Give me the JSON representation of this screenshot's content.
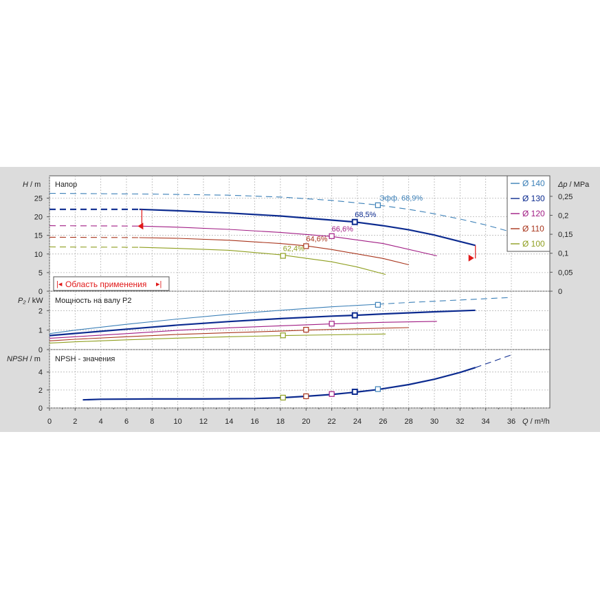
{
  "chart_data": {
    "type": "line",
    "x_axis": {
      "label": "Q / m³/h",
      "label_var": "Q",
      "label_unit": " / m³/h",
      "range": [
        0,
        39
      ],
      "ticks": [
        0,
        2,
        4,
        6,
        8,
        10,
        12,
        14,
        16,
        18,
        20,
        22,
        24,
        26,
        28,
        30,
        32,
        34,
        36
      ]
    },
    "colors": {
      "d140": "#3a7fb7",
      "d130": "#0b2a8f",
      "d120": "#a01b83",
      "d110": "#a8331a",
      "d100": "#8e9e1e",
      "limits": "#e01818",
      "grid": "#b4b4b4",
      "panel": "#ffffff",
      "frame": "#dcdcdc"
    },
    "legend": {
      "position": "right",
      "entries": [
        {
          "key": "d140",
          "label": "Ø 140"
        },
        {
          "key": "d130",
          "label": "Ø 130"
        },
        {
          "key": "d120",
          "label": "Ø 120"
        },
        {
          "key": "d110",
          "label": "Ø 110"
        },
        {
          "key": "d100",
          "label": "Ø 100"
        }
      ]
    },
    "head_panel": {
      "title": "Напор",
      "ylabel": "H / m",
      "ylabel_var": "H",
      "ylabel_unit": " / m",
      "ylim": [
        0,
        31
      ],
      "yticks": [
        0,
        5,
        10,
        15,
        20,
        25
      ],
      "right_axis": {
        "label": "Δp / MPa",
        "label_var": "Δp",
        "label_unit": " / MPa",
        "ticks": [
          0,
          0.05,
          0.1,
          0.15,
          0.2,
          0.25
        ],
        "tick_labels": [
          "0",
          "0,05",
          "0,1",
          "0,15",
          "0,2",
          "0,25"
        ]
      },
      "series": [
        {
          "key": "d140",
          "dashed_only": true,
          "points": [
            [
              0,
              26.3
            ],
            [
              8,
              26.1
            ],
            [
              14,
              25.8
            ],
            [
              18,
              25.3
            ],
            [
              22,
              24.4
            ],
            [
              25.5,
              23.2
            ],
            [
              28,
              22.0
            ],
            [
              30,
              20.8
            ],
            [
              32,
              19.4
            ],
            [
              34,
              17.8
            ],
            [
              36,
              15.9
            ]
          ],
          "bep": [
            25.6,
            23.1
          ],
          "bep_label": "Эфф.  68,9%"
        },
        {
          "key": "d130",
          "solid_from": 7,
          "solid_to": 33.2,
          "bold": true,
          "points": [
            [
              0,
              22.0
            ],
            [
              7,
              22.0
            ],
            [
              10,
              21.6
            ],
            [
              14,
              21.0
            ],
            [
              18,
              20.2
            ],
            [
              22,
              19.1
            ],
            [
              23.8,
              18.6
            ],
            [
              26,
              17.6
            ],
            [
              28,
              16.5
            ],
            [
              30,
              15.1
            ],
            [
              33.2,
              12.3
            ]
          ],
          "bep": [
            23.8,
            18.6
          ],
          "bep_label": "68,5%"
        },
        {
          "key": "d120",
          "solid_from": 7,
          "solid_to": 30.2,
          "points": [
            [
              0,
              17.6
            ],
            [
              7,
              17.5
            ],
            [
              10,
              17.2
            ],
            [
              14,
              16.6
            ],
            [
              18,
              15.8
            ],
            [
              22,
              14.7
            ],
            [
              26,
              12.8
            ],
            [
              30.2,
              9.5
            ]
          ],
          "bep": [
            22,
            14.8
          ],
          "bep_label": "66,6%"
        },
        {
          "key": "d110",
          "solid_from": 7,
          "solid_to": 28,
          "points": [
            [
              0,
              14.5
            ],
            [
              7,
              14.4
            ],
            [
              10,
              14.2
            ],
            [
              14,
              13.7
            ],
            [
              18,
              12.8
            ],
            [
              20,
              12.2
            ],
            [
              22,
              11.2
            ],
            [
              26,
              8.8
            ],
            [
              28,
              7.1
            ]
          ],
          "bep": [
            20,
            12.1
          ],
          "bep_label": "64,6%"
        },
        {
          "key": "d100",
          "solid_from": 7,
          "solid_to": 26.2,
          "points": [
            [
              0,
              11.9
            ],
            [
              7,
              11.8
            ],
            [
              10,
              11.5
            ],
            [
              14,
              11.0
            ],
            [
              18,
              9.8
            ],
            [
              22,
              7.9
            ],
            [
              24,
              6.5
            ],
            [
              26.2,
              4.5
            ]
          ],
          "bep": [
            18.2,
            9.5
          ],
          "bep_label": "62,4%"
        }
      ],
      "range_label": "Область применения",
      "range_min_q": 7.2,
      "range_max_q": 33.2
    },
    "power_panel": {
      "title": "Мощность на валу P2",
      "ylabel": "P₂ / kW",
      "ylabel_var": "P₂",
      "ylabel_unit": " / kW",
      "ylim": [
        0,
        3
      ],
      "yticks": [
        0,
        1,
        2
      ],
      "series": [
        {
          "key": "d140",
          "solid_to": 25.6,
          "points": [
            [
              0,
              0.82
            ],
            [
              2,
              1.0
            ],
            [
              6,
              1.3
            ],
            [
              10,
              1.57
            ],
            [
              14,
              1.81
            ],
            [
              18,
              2.02
            ],
            [
              22,
              2.2
            ],
            [
              25.6,
              2.33
            ],
            [
              28,
              2.42
            ],
            [
              32,
              2.55
            ],
            [
              36,
              2.68
            ]
          ],
          "marker": [
            25.6,
            2.3
          ]
        },
        {
          "key": "d130",
          "bold": true,
          "solid_to": 33.2,
          "points": [
            [
              0,
              0.72
            ],
            [
              2,
              0.83
            ],
            [
              6,
              1.05
            ],
            [
              10,
              1.26
            ],
            [
              14,
              1.44
            ],
            [
              18,
              1.59
            ],
            [
              22,
              1.72
            ],
            [
              23.8,
              1.76
            ],
            [
              26,
              1.83
            ],
            [
              30,
              1.94
            ],
            [
              33.2,
              2.02
            ]
          ],
          "marker": [
            23.8,
            1.76
          ]
        },
        {
          "key": "d120",
          "solid_to": 30.2,
          "points": [
            [
              0,
              0.58
            ],
            [
              2,
              0.66
            ],
            [
              6,
              0.82
            ],
            [
              10,
              0.99
            ],
            [
              14,
              1.12
            ],
            [
              18,
              1.22
            ],
            [
              22,
              1.32
            ],
            [
              26,
              1.4
            ],
            [
              30.2,
              1.45
            ]
          ],
          "marker": [
            22,
            1.33
          ]
        },
        {
          "key": "d110",
          "solid_to": 28,
          "points": [
            [
              0,
              0.45
            ],
            [
              2,
              0.53
            ],
            [
              6,
              0.66
            ],
            [
              10,
              0.78
            ],
            [
              14,
              0.87
            ],
            [
              18,
              0.95
            ],
            [
              20,
              1.0
            ],
            [
              24,
              1.07
            ],
            [
              28,
              1.13
            ]
          ],
          "marker": [
            20,
            1.02
          ]
        },
        {
          "key": "d100",
          "solid_to": 26.2,
          "points": [
            [
              0,
              0.33
            ],
            [
              2,
              0.4
            ],
            [
              6,
              0.5
            ],
            [
              10,
              0.59
            ],
            [
              14,
              0.66
            ],
            [
              18.2,
              0.72
            ],
            [
              22,
              0.76
            ],
            [
              26.2,
              0.8
            ]
          ],
          "marker": [
            18.2,
            0.73
          ]
        }
      ]
    },
    "npsh_panel": {
      "title": "NPSH - значения",
      "ylabel": "NPSH / m",
      "ylabel_var": "NPSH",
      "ylabel_unit": " / m",
      "ylim": [
        0,
        6.5
      ],
      "yticks": [
        0,
        2,
        4
      ],
      "series": [
        {
          "key": "d130",
          "bold": true,
          "solid_to": 33.2,
          "points": [
            [
              2.6,
              0.9
            ],
            [
              4,
              0.97
            ],
            [
              8,
              1.0
            ],
            [
              12,
              1.0
            ],
            [
              16,
              1.05
            ],
            [
              18.2,
              1.15
            ],
            [
              20,
              1.3
            ],
            [
              22,
              1.5
            ],
            [
              23.8,
              1.75
            ],
            [
              25.6,
              2.05
            ],
            [
              28,
              2.6
            ],
            [
              30,
              3.2
            ],
            [
              32,
              3.95
            ],
            [
              33.2,
              4.5
            ],
            [
              35,
              5.4
            ],
            [
              36,
              5.9
            ]
          ]
        }
      ],
      "markers": [
        {
          "key": "d100",
          "q": 18.2,
          "v": 1.15
        },
        {
          "key": "d110",
          "q": 20,
          "v": 1.3
        },
        {
          "key": "d120",
          "q": 22,
          "v": 1.55
        },
        {
          "key": "d130",
          "q": 23.8,
          "v": 1.8
        },
        {
          "key": "d140",
          "q": 25.6,
          "v": 2.1
        }
      ]
    }
  }
}
